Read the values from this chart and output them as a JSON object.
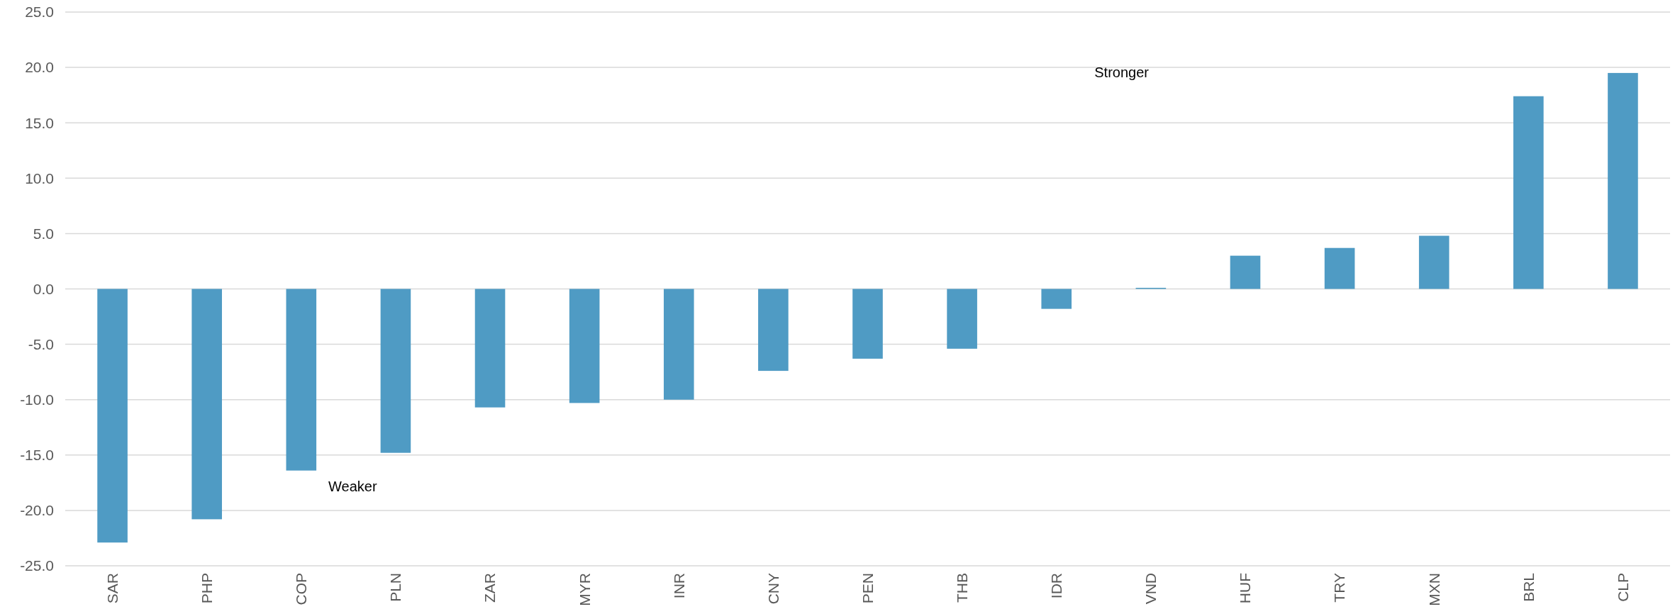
{
  "chart_data": {
    "type": "bar",
    "categories": [
      "SAR",
      "PHP",
      "COP",
      "PLN",
      "ZAR",
      "MYR",
      "INR",
      "CNY",
      "PEN",
      "THB",
      "IDR",
      "VND",
      "HUF",
      "TRY",
      "MXN",
      "BRL",
      "CLP"
    ],
    "values": [
      -22.9,
      -20.8,
      -16.4,
      -14.8,
      -10.7,
      -10.3,
      -10.0,
      -7.4,
      -6.3,
      -5.4,
      -1.8,
      0.1,
      3.0,
      3.7,
      4.8,
      17.4,
      19.5
    ],
    "color": "#4f9bc4",
    "ylim": [
      -25,
      25
    ],
    "yticks": [
      {
        "value": -25,
        "label": "-25.0"
      },
      {
        "value": -20,
        "label": "-20.0"
      },
      {
        "value": -15,
        "label": "-15.0"
      },
      {
        "value": -10,
        "label": "-10.0"
      },
      {
        "value": -5,
        "label": "-5.0"
      },
      {
        "value": 0,
        "label": "0.0"
      },
      {
        "value": 5,
        "label": "5.0"
      },
      {
        "value": 10,
        "label": "10.0"
      },
      {
        "value": 15,
        "label": "15.0"
      },
      {
        "value": 20,
        "label": "20.0"
      },
      {
        "value": 25,
        "label": "25.0"
      }
    ],
    "grid": "y",
    "annotations": [
      "Stronger",
      "Weaker"
    ]
  }
}
